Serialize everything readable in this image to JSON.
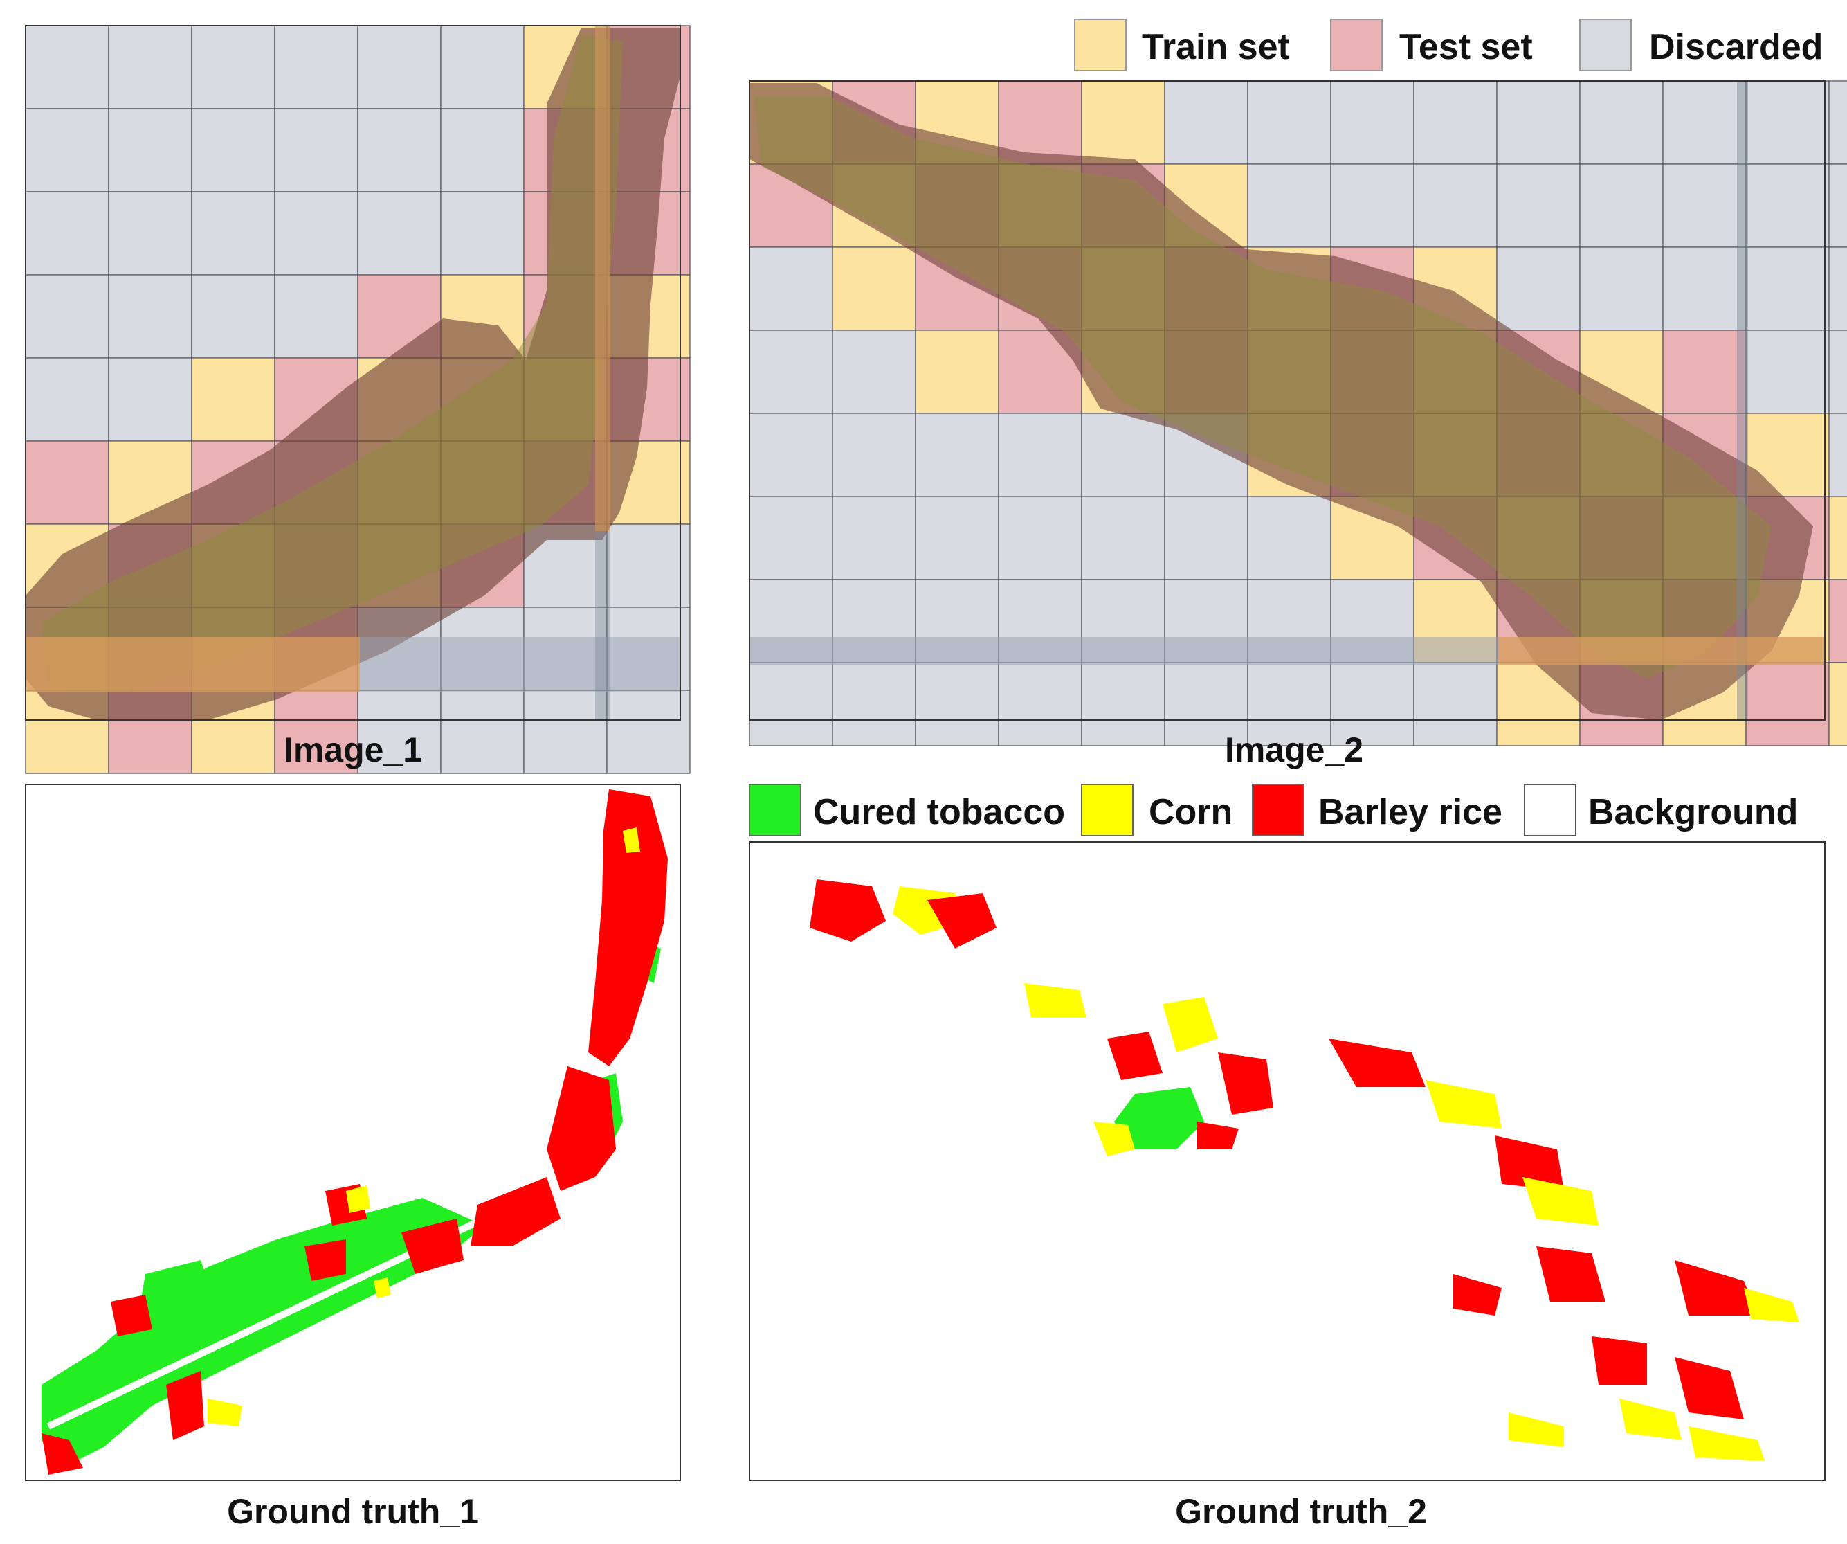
{
  "legend_split": {
    "items": [
      {
        "label": "Train set",
        "color": "#fde3a0"
      },
      {
        "label": "Test set",
        "color": "#ebb2b6"
      },
      {
        "label": "Discarded",
        "color": "#d8dce2"
      }
    ]
  },
  "legend_classes": {
    "items": [
      {
        "label": "Cured tobacco",
        "color": "#22ee22"
      },
      {
        "label": "Corn",
        "color": "#ffff00"
      },
      {
        "label": "Barley rice",
        "color": "#ff0000"
      },
      {
        "label": "Background",
        "color": "#ffffff"
      }
    ]
  },
  "captions": {
    "image_1": "Image_1",
    "image_2": "Image_2",
    "ground_truth_1": "Ground truth_1",
    "ground_truth_2": "Ground truth_2"
  },
  "grid_1": {
    "rows": [
      "DDDDDDTX",
      "DDDDDDXX",
      "DDDDDDXX",
      "DDDDXTXT",
      "DDTXTTTX",
      "XTXXTTXT",
      "TXTXTXDD",
      "TXTXDDDD",
      "TXTXDDDD"
    ]
  },
  "grid_2": {
    "rows": [
      "TXTXTDDDDDDDDD",
      "XTXTXTDDDDDDDD",
      "DTXXTXTXTDDDDD",
      "DDTXTXTXTXTXDD",
      "DDDDDDTXTXTXTD",
      "DDDDDDDTXTXTXT",
      "DDDDDDDDTXTXTX",
      "DDDDDDDDDTXTXT"
    ]
  },
  "colors": {
    "train": "#fde3a0",
    "test": "#ebb2b6",
    "discarded": "#d8dce2",
    "imagery_dark": "#6e4037",
    "imagery_light": "#8f8a3c",
    "tobacco": "#22ee22",
    "corn": "#ffff00",
    "barley": "#ff0000"
  }
}
